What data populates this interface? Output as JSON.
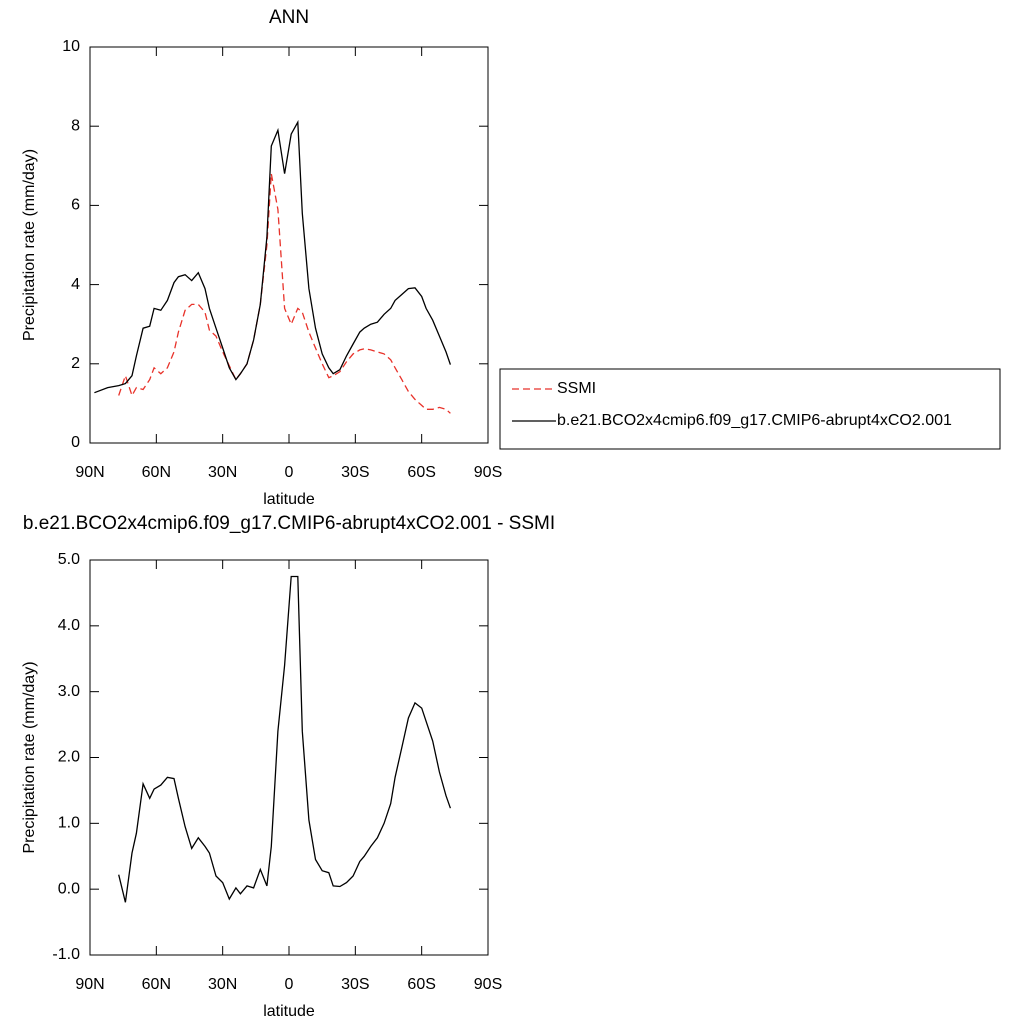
{
  "chart_data": [
    {
      "type": "line",
      "title": "ANN",
      "x_label": "latitude",
      "y_label": "Precipitation rate (mm/day)",
      "x": [
        88,
        82,
        77,
        74,
        71,
        69,
        66,
        63,
        61,
        58,
        55,
        52,
        50,
        47,
        44,
        41,
        38,
        36,
        33,
        30,
        27,
        24,
        22,
        19,
        16,
        13,
        10,
        8,
        5,
        2,
        -1,
        -4,
        -6,
        -9,
        -12,
        -15,
        -18,
        -20,
        -23,
        -26,
        -29,
        -32,
        -34,
        -37,
        -40,
        -43,
        -46,
        -48,
        -51,
        -54,
        -57,
        -60,
        -62,
        -65,
        -68,
        -71,
        -73
      ],
      "series": [
        {
          "name": "SSMI",
          "color": "#e8322a",
          "dashed": true,
          "values": [
            null,
            null,
            1.2,
            1.7,
            1.2,
            1.4,
            1.35,
            1.6,
            1.9,
            1.75,
            1.9,
            2.3,
            2.8,
            3.35,
            3.5,
            3.5,
            3.3,
            2.85,
            2.7,
            2.3,
            1.95,
            1.6,
            1.75,
            2.0,
            2.6,
            3.5,
            5.0,
            6.8,
            5.9,
            3.4,
            3.0,
            3.4,
            3.3,
            2.8,
            2.4,
            2.0,
            1.65,
            1.7,
            1.8,
            2.05,
            2.25,
            2.35,
            2.38,
            2.35,
            2.3,
            2.25,
            2.1,
            1.9,
            1.6,
            1.3,
            1.1,
            0.95,
            0.85,
            0.85,
            0.9,
            0.85,
            0.75
          ]
        },
        {
          "name": "b.e21.BCO2x4cmip6.f09_g17.CMIP6-abrupt4xCO2.001",
          "color": "#000000",
          "dashed": false,
          "values": [
            1.27,
            1.4,
            1.45,
            1.5,
            1.7,
            2.2,
            2.9,
            2.95,
            3.4,
            3.35,
            3.6,
            4.05,
            4.2,
            4.25,
            4.1,
            4.3,
            3.9,
            3.4,
            2.9,
            2.4,
            1.9,
            1.6,
            1.75,
            2.0,
            2.6,
            3.5,
            5.2,
            7.5,
            7.9,
            6.8,
            7.8,
            8.1,
            5.8,
            3.9,
            2.9,
            2.25,
            1.9,
            1.75,
            1.85,
            2.2,
            2.5,
            2.8,
            2.9,
            3.0,
            3.05,
            3.25,
            3.4,
            3.6,
            3.75,
            3.9,
            3.92,
            3.7,
            3.4,
            3.1,
            2.7,
            2.3,
            1.98
          ]
        }
      ],
      "xlim": [
        90,
        -90
      ],
      "xticks": [
        {
          "value": 90,
          "label": "90N"
        },
        {
          "value": 60,
          "label": "60N"
        },
        {
          "value": 30,
          "label": "30N"
        },
        0,
        {
          "value": -30,
          "label": "30S"
        },
        {
          "value": -60,
          "label": "60S"
        },
        {
          "value": -90,
          "label": "90S"
        }
      ],
      "ylim": [
        0,
        10
      ],
      "yticks": [
        0,
        2,
        4,
        6,
        8,
        10
      ]
    },
    {
      "type": "line",
      "title": "b.e21.BCO2x4cmip6.f09_g17.CMIP6-abrupt4xCO2.001 - SSMI",
      "x_label": "latitude",
      "y_label": "Precipitation rate (mm/day)",
      "x": [
        77,
        74,
        71,
        69,
        66,
        63,
        61,
        58,
        55,
        52,
        50,
        47,
        44,
        41,
        38,
        36,
        33,
        30,
        27,
        24,
        22,
        19,
        16,
        13,
        10,
        8,
        5,
        2,
        -1,
        -4,
        -6,
        -9,
        -12,
        -15,
        -18,
        -20,
        -23,
        -26,
        -29,
        -32,
        -34,
        -37,
        -40,
        -43,
        -46,
        -48,
        -51,
        -54,
        -57,
        -60,
        -62,
        -65,
        -68,
        -71,
        -73
      ],
      "series": [
        {
          "color": "#000000",
          "dashed": false,
          "values": [
            0.22,
            -0.2,
            0.55,
            0.85,
            1.6,
            1.38,
            1.52,
            1.58,
            1.7,
            1.68,
            1.38,
            0.95,
            0.62,
            0.78,
            0.65,
            0.55,
            0.2,
            0.1,
            -0.15,
            0.02,
            -0.07,
            0.05,
            0.02,
            0.3,
            0.05,
            0.65,
            2.4,
            3.4,
            4.75,
            4.75,
            2.4,
            1.05,
            0.45,
            0.28,
            0.25,
            0.05,
            0.04,
            0.1,
            0.2,
            0.42,
            0.5,
            0.65,
            0.78,
            1.0,
            1.3,
            1.7,
            2.15,
            2.6,
            2.83,
            2.75,
            2.55,
            2.25,
            1.78,
            1.42,
            1.23
          ]
        }
      ],
      "xlim": [
        90,
        -90
      ],
      "xticks": [
        {
          "value": 90,
          "label": "90N"
        },
        {
          "value": 60,
          "label": "60N"
        },
        {
          "value": 30,
          "label": "30N"
        },
        0,
        {
          "value": -30,
          "label": "30S"
        },
        {
          "value": -60,
          "label": "60S"
        },
        {
          "value": -90,
          "label": "90S"
        }
      ],
      "ylim": [
        -1,
        5
      ],
      "yticks": [
        {
          "value": -1,
          "label": "-1.0"
        },
        {
          "value": 0,
          "label": "0.0"
        },
        {
          "value": 1,
          "label": "1.0"
        },
        {
          "value": 2,
          "label": "2.0"
        },
        {
          "value": 3,
          "label": "3.0"
        },
        {
          "value": 4,
          "label": "4.0"
        },
        {
          "value": 5,
          "label": "5.0"
        }
      ]
    }
  ]
}
